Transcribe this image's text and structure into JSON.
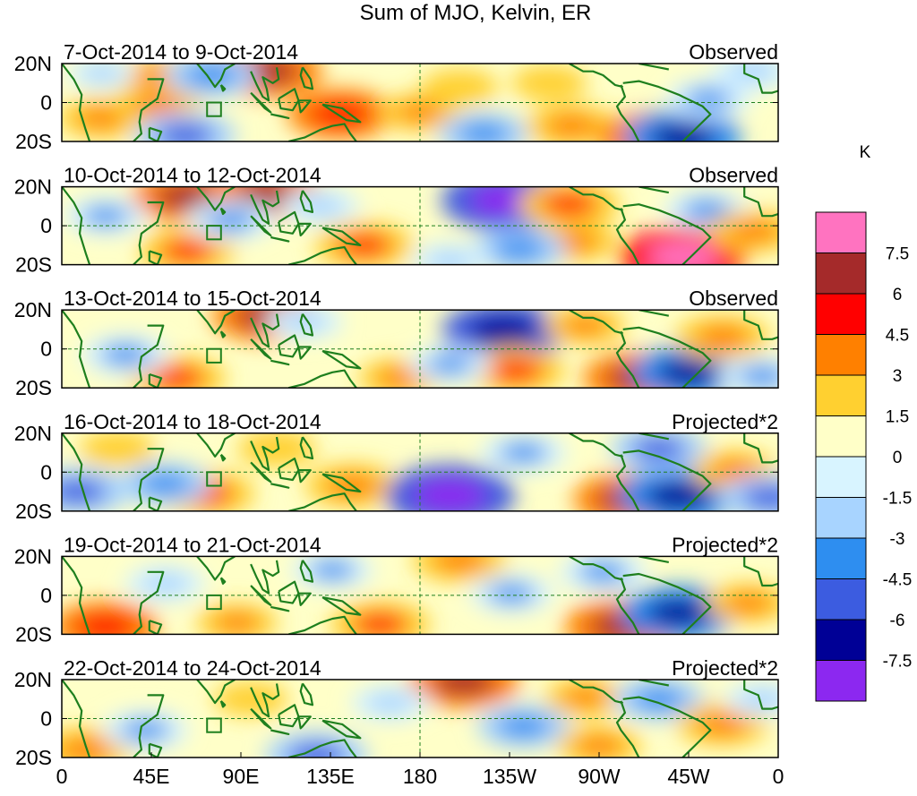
{
  "title": "Sum of MJO, Kelvin, ER",
  "units": "K",
  "x_axis": {
    "tick_labels": [
      "0",
      "45E",
      "90E",
      "135E",
      "180",
      "135W",
      "90W",
      "45W",
      "0"
    ],
    "tick_lons": [
      0,
      45,
      90,
      135,
      180,
      225,
      270,
      315,
      360
    ]
  },
  "y_axis": {
    "tick_labels": [
      "20N",
      "0",
      "20S"
    ],
    "tick_lats": [
      20,
      0,
      -20
    ]
  },
  "colorbar": {
    "levels": [
      "7.5",
      "6",
      "4.5",
      "3",
      "1.5",
      "0",
      "-1.5",
      "-3",
      "-4.5",
      "-6",
      "-7.5"
    ],
    "colors": [
      "#ff73c0",
      "#a52a2a",
      "#ff0000",
      "#ff8000",
      "#ffd030",
      "#ffffc8",
      "#d8f4ff",
      "#a8d4ff",
      "#2e8ef0",
      "#3c5ce0",
      "#000096",
      "#8c28f0"
    ]
  },
  "colors": {
    "coast": "#1e7f1e",
    "frame": "#000000",
    "ref_line": "#1e7f1e"
  },
  "panels": [
    {
      "date_range": "7-Oct-2014 to 9-Oct-2014",
      "status": "Observed",
      "features": [
        {
          "lon": 20,
          "lat": -8,
          "v": 3.6
        },
        {
          "lon": 47,
          "lat": 13,
          "v": 3.5
        },
        {
          "lon": 48,
          "lat": -1,
          "v": 3.8
        },
        {
          "lon": 103,
          "lat": 16,
          "v": 6.1
        },
        {
          "lon": 75,
          "lat": 14,
          "v": -4.3
        },
        {
          "lon": 62,
          "lat": -17,
          "v": -5.2
        },
        {
          "lon": 140,
          "lat": -6,
          "v": 5.6
        },
        {
          "lon": 180,
          "lat": -5,
          "v": 3.0
        },
        {
          "lon": 200,
          "lat": 8,
          "v": 2.4
        },
        {
          "lon": 212,
          "lat": -16,
          "v": -4.1
        },
        {
          "lon": 245,
          "lat": 10,
          "v": 2.3
        },
        {
          "lon": 256,
          "lat": -12,
          "v": 4.1
        },
        {
          "lon": 297,
          "lat": -18,
          "v": 6.0
        },
        {
          "lon": 312,
          "lat": -18,
          "v": -6.8
        },
        {
          "lon": 325,
          "lat": 2,
          "v": -3.4
        },
        {
          "lon": 347,
          "lat": 16,
          "v": -3.0
        },
        {
          "lon": 20,
          "lat": 15,
          "v": -1.8
        }
      ]
    },
    {
      "date_range": "10-Oct-2014 to 12-Oct-2014",
      "status": "Observed",
      "features": [
        {
          "lon": 63,
          "lat": 15,
          "v": 6.0
        },
        {
          "lon": 63,
          "lat": -13,
          "v": 4.6
        },
        {
          "lon": 103,
          "lat": 16,
          "v": 6.3
        },
        {
          "lon": 152,
          "lat": -10,
          "v": 4.9
        },
        {
          "lon": 22,
          "lat": 5,
          "v": -3.2
        },
        {
          "lon": 85,
          "lat": 3,
          "v": -3.8
        },
        {
          "lon": 130,
          "lat": 10,
          "v": -2.8
        },
        {
          "lon": 223,
          "lat": 13,
          "v": -7.9
        },
        {
          "lon": 255,
          "lat": 11,
          "v": 5.1
        },
        {
          "lon": 258,
          "lat": -8,
          "v": 3.4
        },
        {
          "lon": 230,
          "lat": -12,
          "v": -4.2
        },
        {
          "lon": 312,
          "lat": -16,
          "v": 7.8
        },
        {
          "lon": 324,
          "lat": 8,
          "v": -3.6
        },
        {
          "lon": 348,
          "lat": -3,
          "v": 3.9
        },
        {
          "lon": 195,
          "lat": -18,
          "v": -2.6
        }
      ]
    },
    {
      "date_range": "13-Oct-2014 to 15-Oct-2014",
      "status": "Observed",
      "features": [
        {
          "lon": 103,
          "lat": 17,
          "v": 6.0
        },
        {
          "lon": 58,
          "lat": -15,
          "v": 4.7
        },
        {
          "lon": 32,
          "lat": -3,
          "v": -3.8
        },
        {
          "lon": 122,
          "lat": 14,
          "v": -2.6
        },
        {
          "lon": 170,
          "lat": -15,
          "v": 3.2
        },
        {
          "lon": 222,
          "lat": 9,
          "v": -7.4
        },
        {
          "lon": 228,
          "lat": -11,
          "v": 4.9
        },
        {
          "lon": 195,
          "lat": -8,
          "v": -3.1
        },
        {
          "lon": 263,
          "lat": 12,
          "v": 3.0
        },
        {
          "lon": 290,
          "lat": -15,
          "v": 6.2
        },
        {
          "lon": 315,
          "lat": -12,
          "v": -6.3
        },
        {
          "lon": 332,
          "lat": 6,
          "v": 4.4
        },
        {
          "lon": 352,
          "lat": -14,
          "v": -3.6
        }
      ]
    },
    {
      "date_range": "16-Oct-2014 to 18-Oct-2014",
      "status": "Projected*2",
      "features": [
        {
          "lon": 72,
          "lat": -11,
          "v": 4.9
        },
        {
          "lon": 28,
          "lat": 12,
          "v": 2.4
        },
        {
          "lon": 8,
          "lat": -10,
          "v": -5.3
        },
        {
          "lon": 52,
          "lat": -6,
          "v": -4.1
        },
        {
          "lon": 146,
          "lat": -7,
          "v": 4.4
        },
        {
          "lon": 195,
          "lat": -12,
          "v": -8.1
        },
        {
          "lon": 232,
          "lat": 10,
          "v": -3.6
        },
        {
          "lon": 285,
          "lat": -14,
          "v": 6.1
        },
        {
          "lon": 310,
          "lat": -12,
          "v": -7.0
        },
        {
          "lon": 300,
          "lat": 12,
          "v": -4.6
        },
        {
          "lon": 338,
          "lat": 1,
          "v": 3.4
        },
        {
          "lon": 356,
          "lat": -13,
          "v": -5.0
        },
        {
          "lon": 108,
          "lat": 12,
          "v": 2.6
        }
      ]
    },
    {
      "date_range": "19-Oct-2014 to 21-Oct-2014",
      "status": "Projected*2",
      "features": [
        {
          "lon": 22,
          "lat": -16,
          "v": 5.5
        },
        {
          "lon": 88,
          "lat": -14,
          "v": 3.0
        },
        {
          "lon": 136,
          "lat": 13,
          "v": -3.1
        },
        {
          "lon": 160,
          "lat": -15,
          "v": 5.0
        },
        {
          "lon": 200,
          "lat": 18,
          "v": 4.4
        },
        {
          "lon": 226,
          "lat": 1,
          "v": -3.4
        },
        {
          "lon": 272,
          "lat": 12,
          "v": -3.8
        },
        {
          "lon": 282,
          "lat": -16,
          "v": 6.7
        },
        {
          "lon": 310,
          "lat": -9,
          "v": -6.6
        },
        {
          "lon": 345,
          "lat": -4,
          "v": 3.3
        },
        {
          "lon": 52,
          "lat": 6,
          "v": -3.0
        }
      ]
    },
    {
      "date_range": "22-Oct-2014 to 24-Oct-2014",
      "status": "Projected*2",
      "features": [
        {
          "lon": 12,
          "lat": -16,
          "v": 4.4
        },
        {
          "lon": 42,
          "lat": -6,
          "v": -3.6
        },
        {
          "lon": 128,
          "lat": -19,
          "v": -5.3
        },
        {
          "lon": 202,
          "lat": 19,
          "v": 6.1
        },
        {
          "lon": 232,
          "lat": -4,
          "v": -4.2
        },
        {
          "lon": 165,
          "lat": 8,
          "v": -2.8
        },
        {
          "lon": 263,
          "lat": 11,
          "v": 3.0
        },
        {
          "lon": 270,
          "lat": -14,
          "v": 3.4
        },
        {
          "lon": 300,
          "lat": 10,
          "v": -4.1
        },
        {
          "lon": 332,
          "lat": -3,
          "v": 4.1
        },
        {
          "lon": 352,
          "lat": 10,
          "v": -2.6
        },
        {
          "lon": 95,
          "lat": 10,
          "v": 2.2
        }
      ]
    }
  ]
}
